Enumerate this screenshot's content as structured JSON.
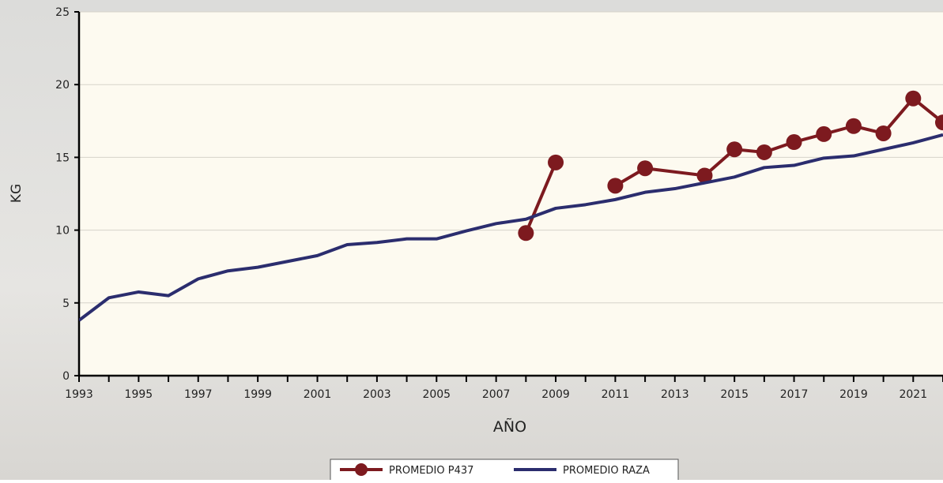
{
  "chart_data": {
    "type": "line",
    "x_label": "AÑO",
    "y_label": "KG",
    "xlim": [
      1993,
      2022
    ],
    "ylim": [
      0,
      25
    ],
    "xticks": [
      1993,
      1995,
      1997,
      1999,
      2001,
      2003,
      2005,
      2007,
      2009,
      2011,
      2013,
      2015,
      2017,
      2019,
      2021
    ],
    "yticks": [
      0,
      5,
      10,
      15,
      20,
      25
    ],
    "grid": true,
    "series": [
      {
        "name": "PROMEDIO P437",
        "color": "#7d1a1f",
        "markers": true,
        "x": [
          2008,
          2009,
          2010,
          2011,
          2012,
          2014,
          2015,
          2016,
          2017,
          2018,
          2019,
          2020,
          2021,
          2022
        ],
        "values": [
          9.8,
          14.65,
          null,
          13.05,
          14.25,
          13.75,
          15.55,
          15.35,
          16.05,
          16.6,
          17.15,
          16.65,
          19.05,
          17.4
        ]
      },
      {
        "name": "PROMEDIO RAZA",
        "color": "#2b2d6e",
        "markers": false,
        "x": [
          1993,
          1994,
          1995,
          1996,
          1997,
          1998,
          1999,
          2000,
          2001,
          2002,
          2003,
          2004,
          2005,
          2006,
          2007,
          2008,
          2009,
          2010,
          2011,
          2012,
          2013,
          2014,
          2015,
          2016,
          2017,
          2018,
          2019,
          2020,
          2021,
          2022
        ],
        "values": [
          3.8,
          5.35,
          5.75,
          5.5,
          6.65,
          7.2,
          7.45,
          7.85,
          8.25,
          9.0,
          9.15,
          9.4,
          9.4,
          9.95,
          10.45,
          10.75,
          11.5,
          11.75,
          12.1,
          12.6,
          12.85,
          13.25,
          13.65,
          14.3,
          14.45,
          14.95,
          15.1,
          15.55,
          16.0,
          16.55
        ]
      }
    ],
    "legend": "bottom"
  }
}
